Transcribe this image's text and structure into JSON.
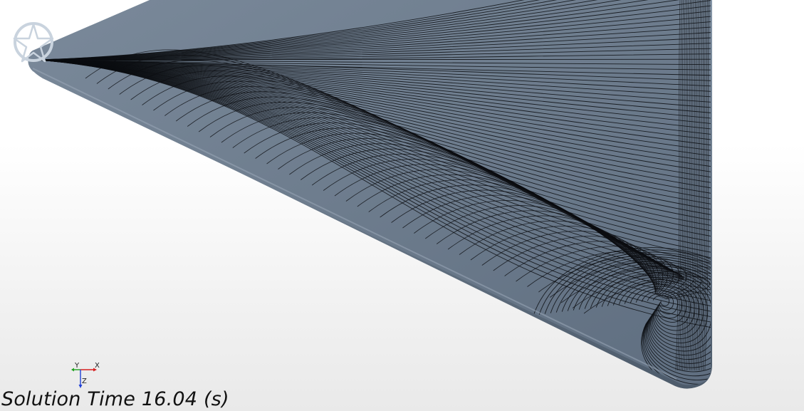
{
  "scene": {
    "surface_color": "#6f7e8f",
    "streamline_color": "#0b0d10",
    "background_top": "#ffffff",
    "background_bottom": "#e9e9e9",
    "logo_icon": "compass-star-icon"
  },
  "triad": {
    "x_label": "X",
    "y_label": "Y",
    "z_label": "Z",
    "x_color": "#d62020",
    "y_color": "#1fa21f",
    "z_color": "#1f3fd6"
  },
  "annotation": {
    "solution_time_text": "Solution Time 16.04 (s)"
  }
}
